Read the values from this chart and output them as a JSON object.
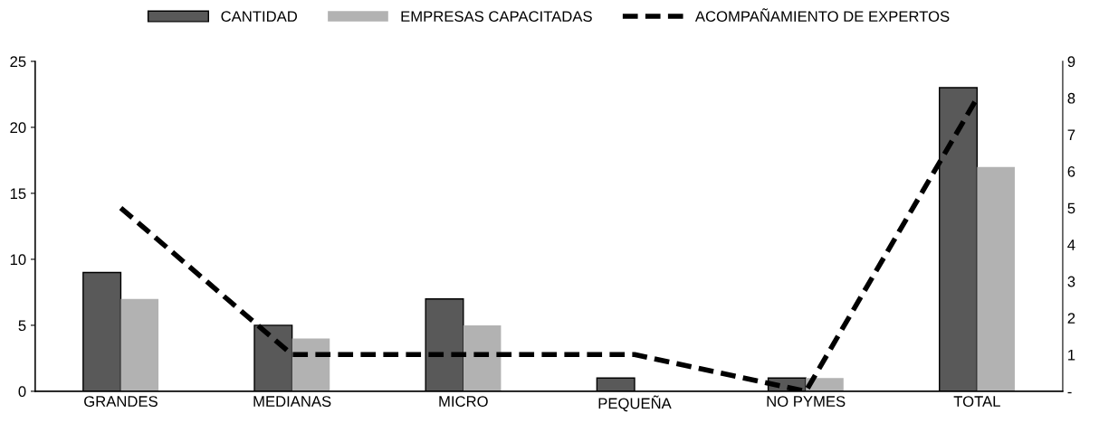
{
  "chart_data": {
    "type": "bar",
    "categories": [
      "GRANDES",
      "MEDIANAS",
      "MICRO",
      "PEQUEÑA",
      "NO PYMES",
      "TOTAL"
    ],
    "series": [
      {
        "name": "CANTIDAD",
        "color": "#595959",
        "values": [
          9,
          5,
          7,
          1,
          1,
          23
        ]
      },
      {
        "name": "EMPRESAS CAPACITADAS",
        "color": "#b2b2b2",
        "values": [
          7,
          4,
          5,
          0,
          1,
          17
        ]
      },
      {
        "name": "ACOMPAÑAMIENTO DE EXPERTOS",
        "type": "line",
        "axis": "y2",
        "color": "#000000",
        "line_style": "dashed",
        "values": [
          5,
          1,
          1,
          1,
          0,
          8
        ]
      }
    ],
    "ylim": [
      0,
      25
    ],
    "yticks": [
      0,
      5,
      10,
      15,
      20,
      25
    ],
    "y2lim": [
      0,
      9
    ],
    "y2ticks": [
      {
        "value": 0,
        "label": "-"
      },
      1,
      2,
      3,
      4,
      5,
      6,
      7,
      8,
      9
    ],
    "grid": false,
    "legend": "top"
  }
}
